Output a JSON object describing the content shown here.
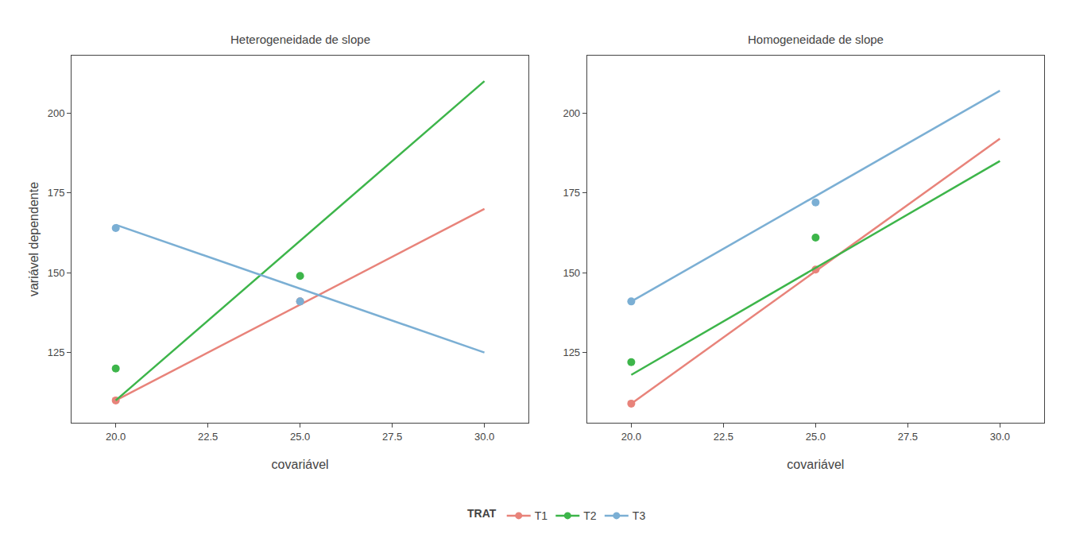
{
  "chart_data": [
    {
      "type": "scatter",
      "title": "Heterogeneidade de slope",
      "x_label": "covariável",
      "y_label": "variável dependente",
      "xlim": [
        18.8,
        31.2
      ],
      "ylim": [
        103,
        218
      ],
      "xticks": [
        {
          "value": 20.0,
          "label": "20.0"
        },
        22.5,
        {
          "value": 25.0,
          "label": "25.0"
        },
        27.5,
        {
          "value": 30.0,
          "label": "30.0"
        }
      ],
      "yticks": [
        125,
        150,
        175,
        200
      ],
      "grid": false,
      "marker": "circle",
      "legend": "bottom",
      "legend_title": "TRAT",
      "series": [
        {
          "name": "T1",
          "color": "#E8837A",
          "x": [
            20,
            25
          ],
          "values": [
            110,
            141
          ],
          "line_x": [
            20,
            30
          ],
          "line_values": [
            110,
            170
          ]
        },
        {
          "name": "T2",
          "color": "#3DB54A",
          "x": [
            20,
            25
          ],
          "values": [
            120,
            149
          ],
          "line_x": [
            20,
            30
          ],
          "line_values": [
            110,
            210
          ]
        },
        {
          "name": "T3",
          "color": "#7BAFD4",
          "x": [
            20,
            25
          ],
          "values": [
            164,
            141
          ],
          "line_x": [
            20,
            30
          ],
          "line_values": [
            165,
            125
          ]
        }
      ]
    },
    {
      "type": "scatter",
      "title": "Homogeneidade de slope",
      "x_label": "covariável",
      "xlim": [
        18.8,
        31.2
      ],
      "ylim": [
        103,
        218
      ],
      "xticks": [
        {
          "value": 20.0,
          "label": "20.0"
        },
        22.5,
        {
          "value": 25.0,
          "label": "25.0"
        },
        27.5,
        {
          "value": 30.0,
          "label": "30.0"
        }
      ],
      "yticks": [
        125,
        150,
        175,
        200
      ],
      "grid": false,
      "marker": "circle",
      "series": [
        {
          "name": "T1",
          "color": "#E8837A",
          "x": [
            20,
            25
          ],
          "values": [
            109,
            151
          ],
          "line_x": [
            20,
            30
          ],
          "line_values": [
            109,
            192
          ]
        },
        {
          "name": "T2",
          "color": "#3DB54A",
          "x": [
            20,
            25
          ],
          "values": [
            122,
            161
          ],
          "line_x": [
            20,
            30
          ],
          "line_values": [
            118,
            185
          ]
        },
        {
          "name": "T3",
          "color": "#7BAFD4",
          "x": [
            20,
            25
          ],
          "values": [
            141,
            172
          ],
          "line_x": [
            20,
            30
          ],
          "line_values": [
            141,
            207
          ]
        }
      ]
    }
  ]
}
